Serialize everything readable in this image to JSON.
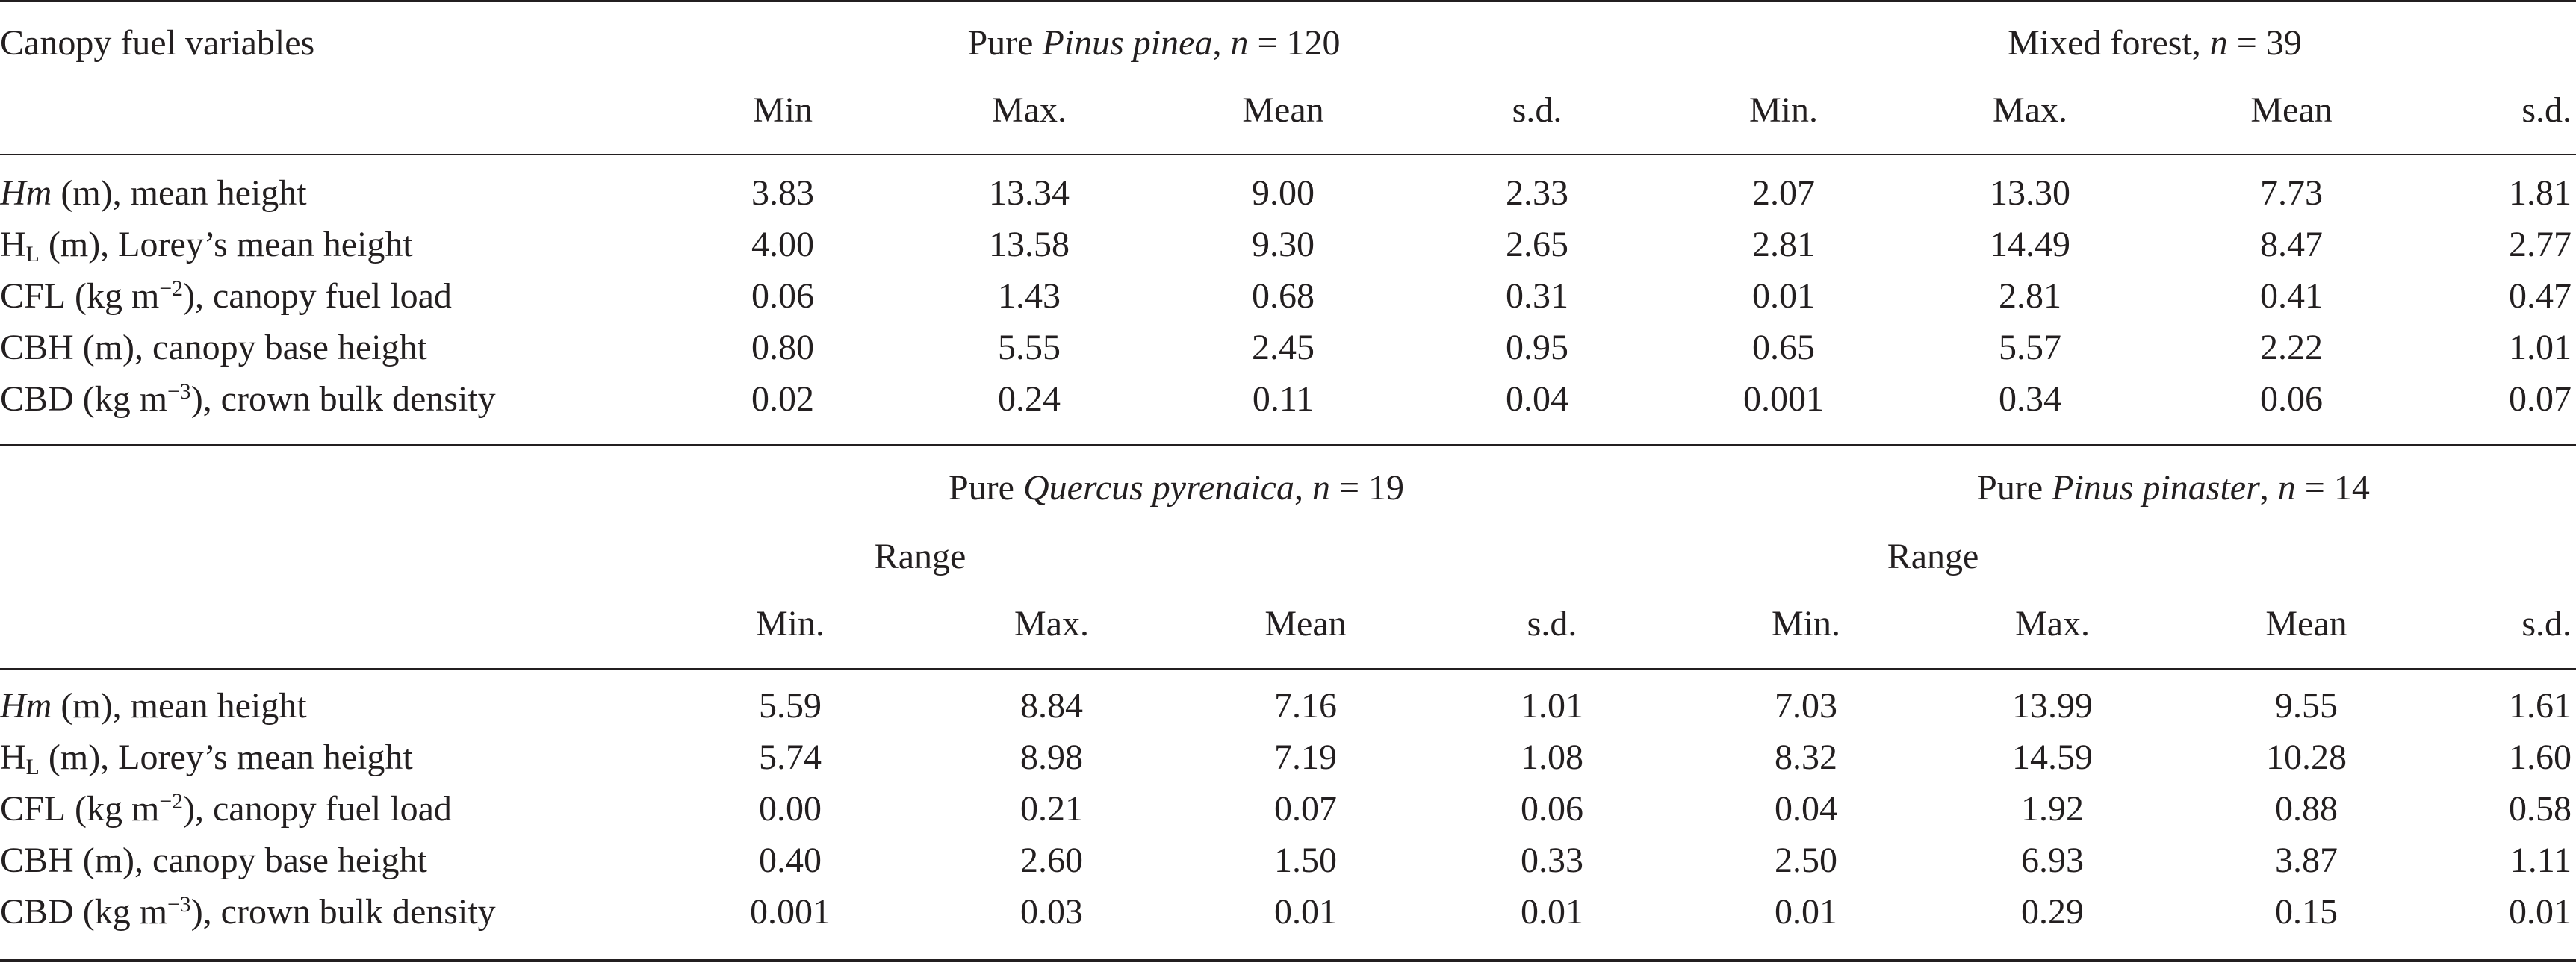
{
  "stub_header": "Canopy fuel variables",
  "blocks": [
    {
      "groups": [
        {
          "label_pre": "Pure ",
          "label_italic": "Pinus pinea",
          "label_post": ", ",
          "n_label": "n",
          "n_value": "= 120",
          "range_label": "",
          "stats": [
            "Min",
            "Max.",
            "Mean",
            "s.d."
          ]
        },
        {
          "label_pre": "Mixed forest, ",
          "label_italic": "",
          "label_post": "",
          "n_label": "n",
          "n_value": "= 39",
          "range_label": "",
          "stats": [
            "Min.",
            "Max.",
            "Mean",
            "s.d."
          ]
        }
      ],
      "rows": [
        {
          "var_italic": "Hm",
          "var_pre": "",
          "var_sub": "",
          "var_mid": " (m",
          "var_sup": "",
          "var_post": "), mean height",
          "values": [
            "3.83",
            "13.34",
            "9.00",
            "2.33",
            "2.07",
            "13.30",
            "7.73",
            "1.81"
          ]
        },
        {
          "var_italic": "",
          "var_pre": "H",
          "var_sub": "L",
          "var_mid": " (m",
          "var_sup": "",
          "var_post": "), Lorey’s mean height",
          "values": [
            "4.00",
            "13.58",
            "9.30",
            "2.65",
            "2.81",
            "14.49",
            "8.47",
            "2.77"
          ]
        },
        {
          "var_italic": "",
          "var_pre": "CFL",
          "var_sub": "",
          "var_mid": " (kg m",
          "var_sup": "−2",
          "var_post": "), canopy fuel load",
          "values": [
            "0.06",
            "1.43",
            "0.68",
            "0.31",
            "0.01",
            "2.81",
            "0.41",
            "0.47"
          ]
        },
        {
          "var_italic": "",
          "var_pre": "CBH",
          "var_sub": "",
          "var_mid": " (m",
          "var_sup": "",
          "var_post": "), canopy base height",
          "values": [
            "0.80",
            "5.55",
            "2.45",
            "0.95",
            "0.65",
            "5.57",
            "2.22",
            "1.01"
          ]
        },
        {
          "var_italic": "",
          "var_pre": "CBD",
          "var_sub": "",
          "var_mid": " (kg m",
          "var_sup": "−3",
          "var_post": "), crown bulk density",
          "values": [
            "0.02",
            "0.24",
            "0.11",
            "0.04",
            "0.001",
            "0.34",
            "0.06",
            "0.07"
          ]
        }
      ]
    },
    {
      "groups": [
        {
          "label_pre": "Pure ",
          "label_italic": "Quercus pyrenaica",
          "label_post": ", ",
          "n_label": "n",
          "n_value": "= 19",
          "range_label": "Range",
          "stats": [
            "Min.",
            "Max.",
            "Mean",
            "s.d."
          ]
        },
        {
          "label_pre": "Pure ",
          "label_italic": "Pinus pinaster",
          "label_post": ", ",
          "n_label": "n",
          "n_value": "= 14",
          "range_label": "Range",
          "stats": [
            "Min.",
            "Max.",
            "Mean",
            "s.d."
          ]
        }
      ],
      "rows": [
        {
          "var_italic": "Hm",
          "var_pre": "",
          "var_sub": "",
          "var_mid": " (m",
          "var_sup": "",
          "var_post": "), mean height",
          "values": [
            "5.59",
            "8.84",
            "7.16",
            "1.01",
            "7.03",
            "13.99",
            "9.55",
            "1.61"
          ]
        },
        {
          "var_italic": "",
          "var_pre": "H",
          "var_sub": "L",
          "var_mid": " (m",
          "var_sup": "",
          "var_post": "), Lorey’s mean height",
          "values": [
            "5.74",
            "8.98",
            "7.19",
            "1.08",
            "8.32",
            "14.59",
            "10.28",
            "1.60"
          ]
        },
        {
          "var_italic": "",
          "var_pre": "CFL",
          "var_sub": "",
          "var_mid": " (kg m",
          "var_sup": "−2",
          "var_post": "), canopy fuel load",
          "values": [
            "0.00",
            "0.21",
            "0.07",
            "0.06",
            "0.04",
            "1.92",
            "0.88",
            "0.58"
          ]
        },
        {
          "var_italic": "",
          "var_pre": "CBH",
          "var_sub": "",
          "var_mid": " (m",
          "var_sup": "",
          "var_post": "), canopy base height",
          "values": [
            "0.40",
            "2.60",
            "1.50",
            "0.33",
            "2.50",
            "6.93",
            "3.87",
            "1.11"
          ]
        },
        {
          "var_italic": "",
          "var_pre": "CBD",
          "var_sub": "",
          "var_mid": " (kg m",
          "var_sup": "−3",
          "var_post": "), crown bulk density",
          "values": [
            "0.001",
            "0.03",
            "0.01",
            "0.01",
            "0.01",
            "0.29",
            "0.15",
            "0.01"
          ]
        }
      ]
    }
  ]
}
